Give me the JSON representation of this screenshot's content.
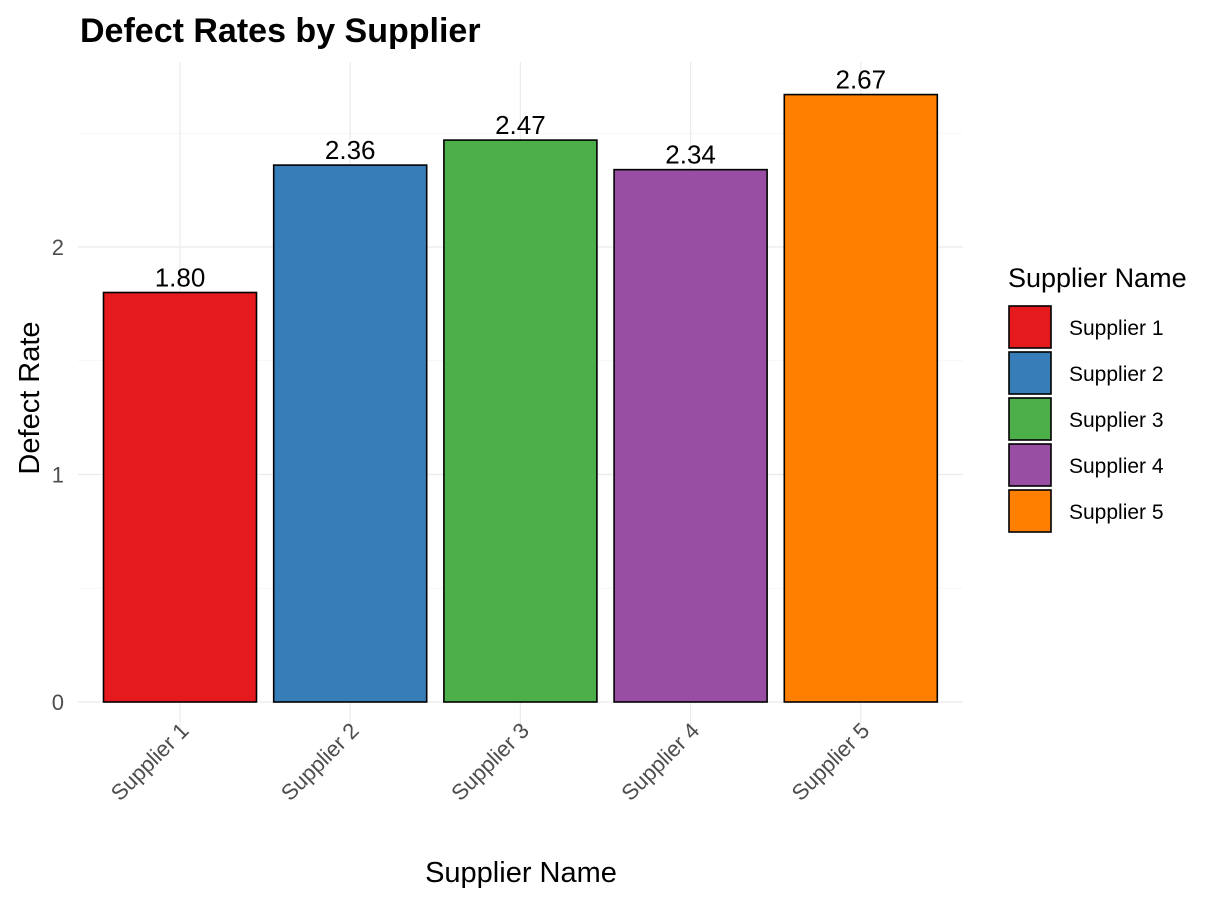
{
  "chart_data": {
    "type": "bar",
    "title": "Defect Rates by Supplier",
    "xlabel": "Supplier Name",
    "ylabel": "Defect Rate",
    "categories": [
      "Supplier 1",
      "Supplier 2",
      "Supplier 3",
      "Supplier 4",
      "Supplier 5"
    ],
    "values": [
      1.8,
      2.36,
      2.47,
      2.34,
      2.67
    ],
    "data_labels": [
      "1.80",
      "2.36",
      "2.47",
      "2.34",
      "2.67"
    ],
    "colors": [
      "#e41a1c",
      "#377eb8",
      "#4daf4a",
      "#984ea3",
      "#ff7f00"
    ],
    "y_ticks": [
      0,
      1,
      2
    ],
    "y_tick_labels": [
      "0",
      "1",
      "2"
    ],
    "ylim": [
      0,
      2.8
    ],
    "grid": true,
    "legend": {
      "title": "Supplier Name",
      "position": "right",
      "entries": [
        "Supplier 1",
        "Supplier 2",
        "Supplier 3",
        "Supplier 4",
        "Supplier 5"
      ]
    }
  }
}
